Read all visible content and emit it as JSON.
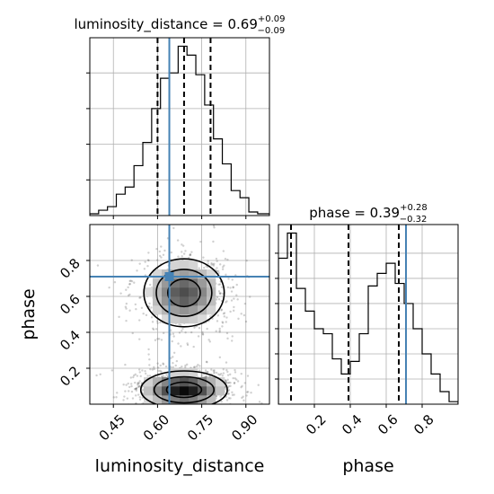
{
  "chart_data": {
    "type": "corner",
    "parameters": [
      "luminosity_distance",
      "phase"
    ],
    "axis_labels": {
      "x": [
        "luminosity_distance",
        "phase"
      ],
      "y": [
        "",
        "phase"
      ]
    },
    "marginal_titles": [
      {
        "param": "luminosity_distance",
        "prefix": "luminosity_distance = ",
        "value": "0.69",
        "plus": "+0.09",
        "minus": "−0.09"
      },
      {
        "param": "phase",
        "prefix": "phase = ",
        "value": "0.39",
        "plus": "+0.28",
        "minus": "−0.32"
      }
    ],
    "ranges": {
      "luminosity_distance": [
        0.37,
        0.98
      ],
      "phase": [
        0.0,
        1.0
      ]
    },
    "ticks": {
      "luminosity_distance": {
        "values": [
          0.45,
          0.6,
          0.75,
          0.9
        ],
        "labels": [
          "0.45",
          "0.60",
          "0.75",
          "0.90"
        ]
      },
      "phase": {
        "values": [
          0.2,
          0.4,
          0.6,
          0.8
        ],
        "labels": [
          "0.2",
          "0.4",
          "0.6",
          "0.8"
        ]
      }
    },
    "truth": {
      "luminosity_distance": 0.64,
      "phase": 0.71
    },
    "quantiles": {
      "luminosity_distance": [
        0.6,
        0.69,
        0.78
      ],
      "phase": [
        0.07,
        0.39,
        0.67
      ]
    },
    "hist_luminosity_distance": {
      "bin_edges": [
        0.37,
        0.4,
        0.43,
        0.46,
        0.49,
        0.52,
        0.55,
        0.58,
        0.61,
        0.64,
        0.67,
        0.7,
        0.73,
        0.76,
        0.79,
        0.82,
        0.85,
        0.88,
        0.91,
        0.94,
        0.98
      ],
      "values": [
        1,
        3,
        5,
        12,
        16,
        28,
        41,
        60,
        77,
        80,
        95,
        90,
        79,
        62,
        43,
        29,
        14,
        10,
        2,
        1
      ]
    },
    "hist_phase": {
      "bin_edges": [
        0.0,
        0.05,
        0.1,
        0.15,
        0.2,
        0.25,
        0.3,
        0.35,
        0.4,
        0.45,
        0.5,
        0.55,
        0.6,
        0.65,
        0.7,
        0.75,
        0.8,
        0.85,
        0.9,
        0.95,
        1.0
      ],
      "values": [
        58,
        68,
        46,
        37,
        30,
        28,
        18,
        12,
        17,
        28,
        47,
        52,
        56,
        48,
        40,
        30,
        20,
        12,
        5,
        1
      ]
    },
    "density_2d": {
      "x_range": [
        0.37,
        0.98
      ],
      "y_range": [
        0.0,
        1.0
      ],
      "modes": [
        {
          "x": 0.69,
          "y": 0.08,
          "sx": 0.07,
          "sy": 0.05,
          "weight": 1.0
        },
        {
          "x": 0.69,
          "y": 0.62,
          "sx": 0.065,
          "sy": 0.09,
          "weight": 0.7
        }
      ]
    }
  }
}
